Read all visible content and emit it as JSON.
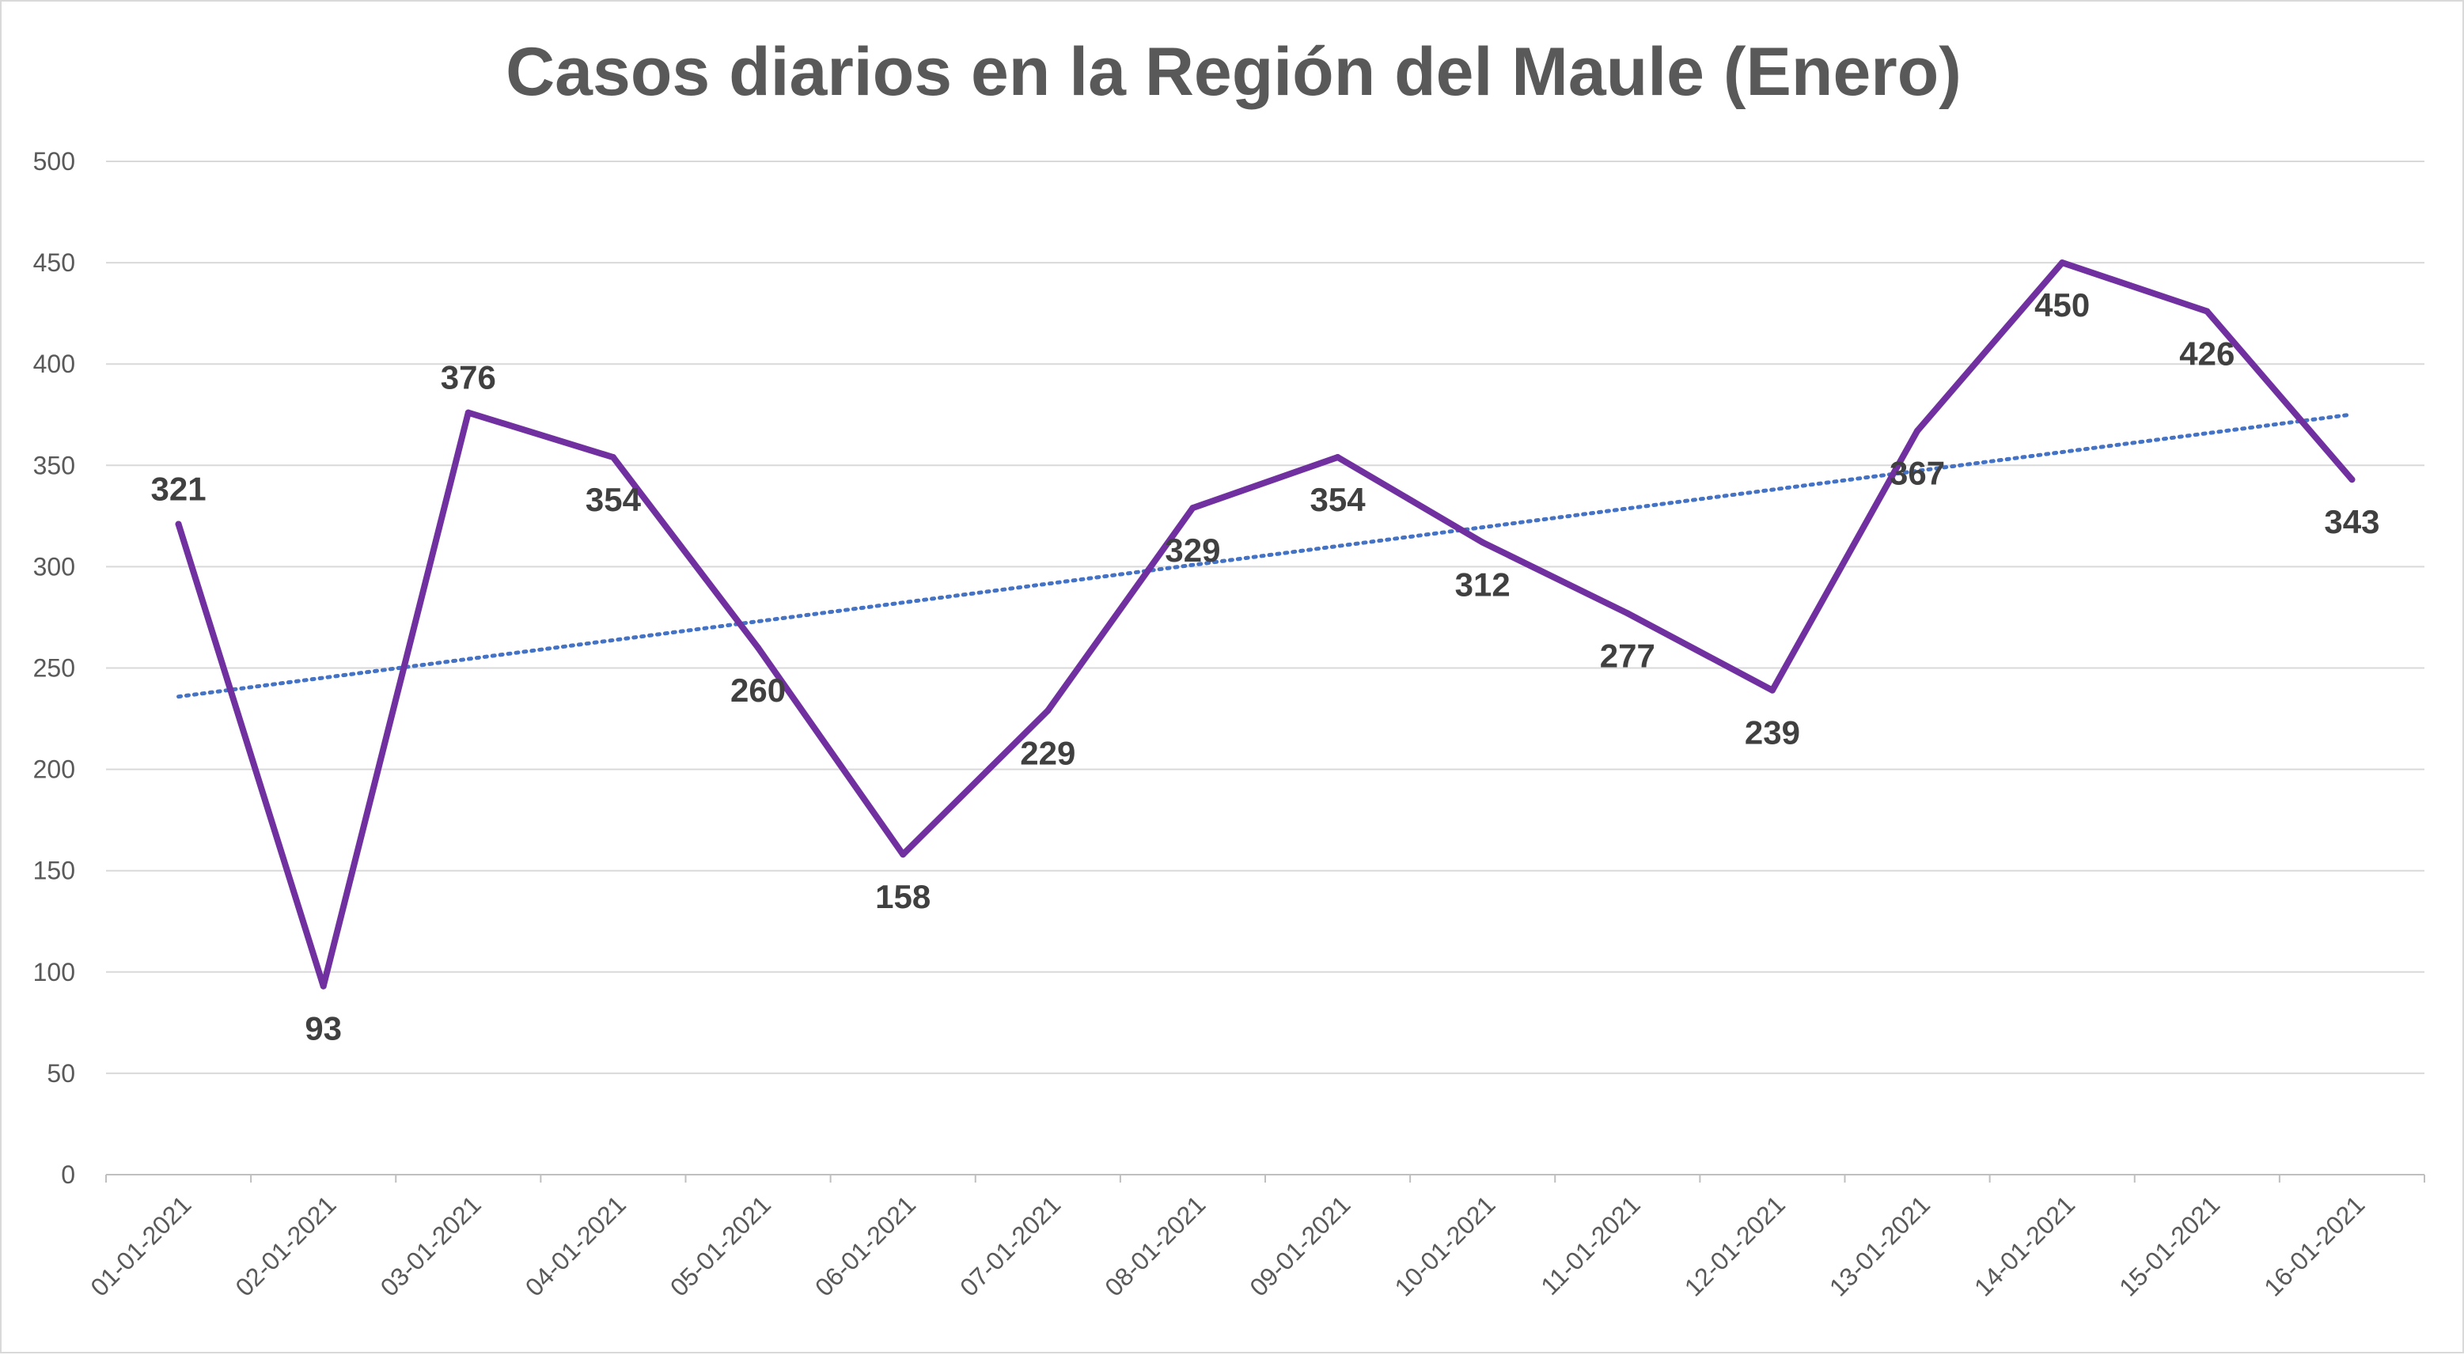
{
  "chart_data": {
    "type": "line",
    "title": "Casos diarios en la Región del Maule (Enero)",
    "xlabel": "",
    "ylabel": "",
    "categories": [
      "01-01-2021",
      "02-01-2021",
      "03-01-2021",
      "04-01-2021",
      "05-01-2021",
      "06-01-2021",
      "07-01-2021",
      "08-01-2021",
      "09-01-2021",
      "10-01-2021",
      "11-01-2021",
      "12-01-2021",
      "13-01-2021",
      "14-01-2021",
      "15-01-2021",
      "16-01-2021"
    ],
    "series": [
      {
        "values": [
          321,
          93,
          376,
          354,
          260,
          158,
          229,
          329,
          354,
          312,
          277,
          239,
          367,
          450,
          426,
          343
        ],
        "color": "#7030a0",
        "data_labels": [
          "321",
          "93",
          "376",
          "354",
          "260",
          "158",
          "229",
          "329",
          "354",
          "312",
          "277",
          "239",
          "367",
          "450",
          "426",
          "343"
        ]
      }
    ],
    "trendline": {
      "type": "linear",
      "style": "dotted",
      "color": "#4472c4"
    },
    "ylim": [
      0,
      500
    ],
    "yticks": [
      "0",
      "50",
      "100",
      "150",
      "200",
      "250",
      "300",
      "350",
      "400",
      "450",
      "500"
    ],
    "grid": true,
    "legend": "none"
  }
}
